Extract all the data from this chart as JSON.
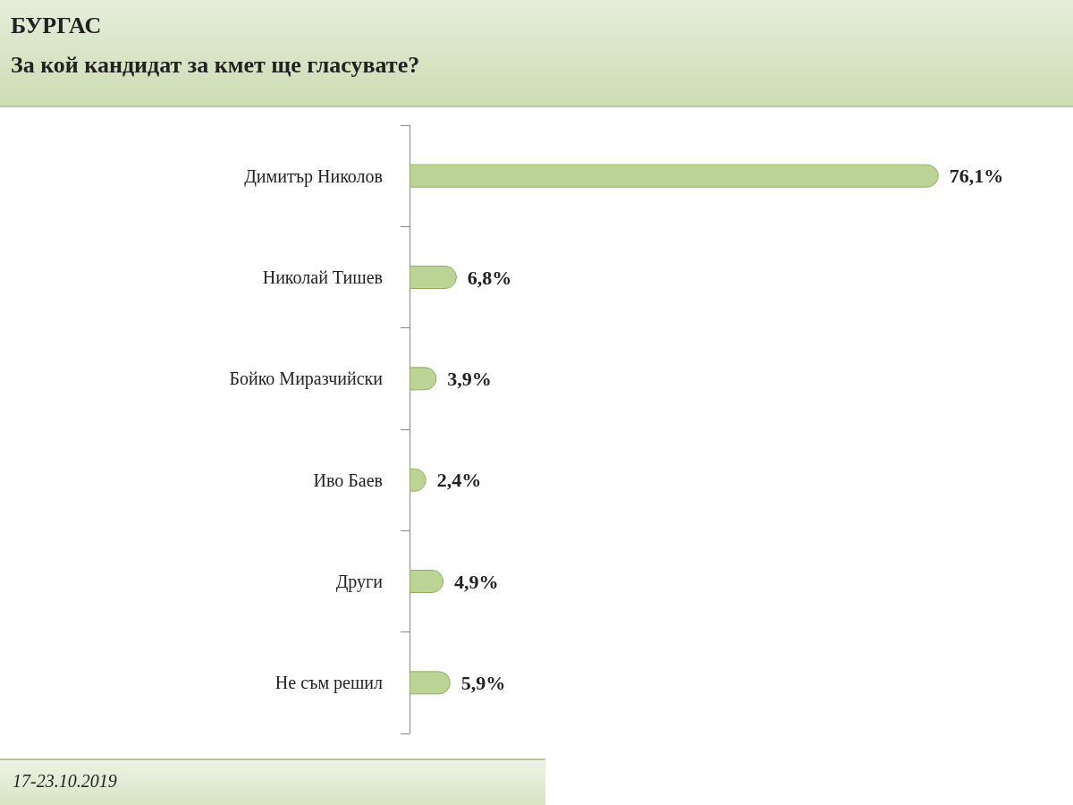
{
  "chart_data": {
    "type": "bar",
    "orientation": "horizontal",
    "title": "БУРГАС",
    "subtitle": "За кой кандидат за кмет ще гласувате?",
    "categories": [
      "Димитър Николов",
      "Николай Тишев",
      "Бойко Миразчийски",
      "Иво Баев",
      "Други",
      "Не съм решил"
    ],
    "values": [
      76.1,
      6.8,
      3.9,
      2.4,
      4.9,
      5.9
    ],
    "value_labels": [
      "76,1%",
      "6,8%",
      "3,9%",
      "2,4%",
      "4,9%",
      "5,9%"
    ],
    "color": "#bcd596",
    "tick_labels": "y",
    "annotations": [
      "17-23.10.2019"
    ]
  }
}
